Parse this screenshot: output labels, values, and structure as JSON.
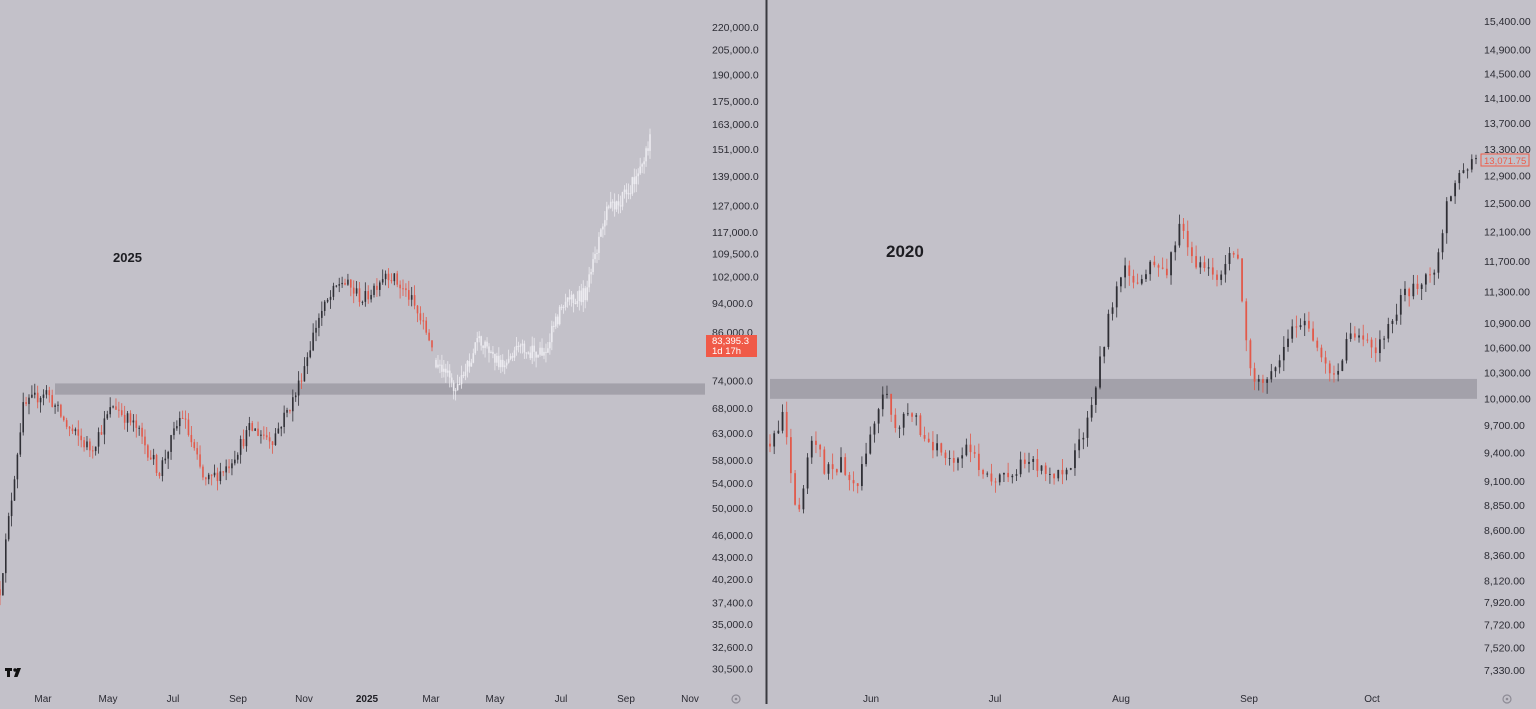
{
  "colors": {
    "background": "#c3c1c9",
    "up": "#2f2f35",
    "down": "#e2594a",
    "projection": "#ecebf0",
    "zone": "#9d9ba5",
    "price_tag": "#f05a48",
    "divider": "#3a3a40"
  },
  "logo": "TV",
  "chart_data": [
    {
      "type": "candlestick",
      "title": "2025",
      "scale": "log",
      "ylim": [
        29500,
        232000
      ],
      "y_ticks": [
        "220,000.0",
        "205,000.0",
        "190,000.0",
        "175,000.0",
        "163,000.0",
        "151,000.0",
        "139,000.0",
        "127,000.0",
        "117,000.0",
        "109,500.0",
        "102,000.0",
        "94,000.0",
        "86,000.0",
        "74,000.0",
        "68,000.0",
        "63,000.0",
        "58,000.0",
        "54,000.0",
        "50,000.0",
        "46,000.0",
        "43,000.0",
        "40,200.0",
        "37,400.0",
        "35,000.0",
        "32,600.0",
        "30,500.0"
      ],
      "x_ticks": [
        "Mar",
        "May",
        "Jul",
        "Sep",
        "Nov",
        "2025",
        "Mar",
        "May",
        "Jul",
        "Sep",
        "Nov"
      ],
      "current_price": "83,395.3",
      "countdown": "1d 17h",
      "zone": [
        71000,
        73500
      ],
      "series": [
        {
          "kind": "historical",
          "points": [
            [
              "Feb 2024",
              39000
            ],
            [
              "early Mar 2024",
              68000
            ],
            [
              "mid Mar 2024",
              72000
            ],
            [
              "Apr 2024",
              64000
            ],
            [
              "May 2024",
              60000
            ],
            [
              "late May 2024",
              69000
            ],
            [
              "Jun 2024",
              64000
            ],
            [
              "Jul 2024",
              56000
            ],
            [
              "late Jul 2024",
              67000
            ],
            [
              "Aug 2024",
              54000
            ],
            [
              "early Sep 2024",
              57000
            ],
            [
              "late Sep 2024",
              64000
            ],
            [
              "Oct 2024",
              62000
            ],
            [
              "late Oct 2024",
              71000
            ],
            [
              "Nov 2024",
              90000
            ],
            [
              "Dec 2024",
              101000
            ],
            [
              "Jan 2025",
              95000
            ],
            [
              "late Jan 2025",
              104000
            ],
            [
              "Feb 2025",
              96000
            ],
            [
              "Mar 2025",
              83000
            ]
          ]
        },
        {
          "kind": "projection",
          "points": [
            [
              "Mar 2025",
              79000
            ],
            [
              "early Apr 2025",
              72000
            ],
            [
              "late Apr 2025",
              84000
            ],
            [
              "May 2025",
              78000
            ],
            [
              "Jun 2025",
              82000
            ],
            [
              "late Jun 2025",
              80000
            ],
            [
              "Jul 2025",
              95000
            ],
            [
              "early Aug 2025",
              97000
            ],
            [
              "Aug 2025",
              125000
            ],
            [
              "Sep 2025",
              132000
            ],
            [
              "late Sep 2025",
              155000
            ]
          ]
        }
      ]
    },
    {
      "type": "candlestick",
      "title": "2020",
      "scale": "log",
      "ylim": [
        7250,
        15600
      ],
      "y_ticks": [
        "15,400.00",
        "14,900.00",
        "14,500.00",
        "14,100.00",
        "13,700.00",
        "13,300.00",
        "12,900.00",
        "12,500.00",
        "12,100.00",
        "11,700.00",
        "11,300.00",
        "10,900.00",
        "10,600.00",
        "10,300.00",
        "10,000.00",
        "9,700.00",
        "9,400.00",
        "9,100.00",
        "8,850.00",
        "8,600.00",
        "8,360.00",
        "8,120.00",
        "7,920.00",
        "7,720.00",
        "7,520.00",
        "7,330.00"
      ],
      "x_ticks": [
        "Jun",
        "Jul",
        "Aug",
        "Sep",
        "Oct"
      ],
      "current_price": "13,071.75",
      "zone": [
        10000,
        10230
      ],
      "series": [
        {
          "kind": "historical",
          "points": [
            [
              "May 10",
              9500
            ],
            [
              "May 11",
              9800
            ],
            [
              "May 13",
              8700
            ],
            [
              "May 16",
              9600
            ],
            [
              "May 20",
              9200
            ],
            [
              "May 23",
              9300
            ],
            [
              "late May",
              9000
            ],
            [
              "Jun 1",
              9500
            ],
            [
              "Jun 2",
              10100
            ],
            [
              "Jun 5",
              9700
            ],
            [
              "Jun 8",
              9800
            ],
            [
              "Jun 10",
              9600
            ],
            [
              "Jun 13",
              9400
            ],
            [
              "Jun 18",
              9300
            ],
            [
              "Jun 22",
              9500
            ],
            [
              "Jun 25",
              9200
            ],
            [
              "Jun 28",
              9100
            ],
            [
              "Jul 1",
              9200
            ],
            [
              "Jul 8",
              9300
            ],
            [
              "Jul 12",
              9250
            ],
            [
              "Jul 16",
              9150
            ],
            [
              "Jul 20",
              9200
            ],
            [
              "Jul 23",
              9500
            ],
            [
              "Jul 27",
              10100
            ],
            [
              "Jul 29",
              11000
            ],
            [
              "Aug 1",
              11600
            ],
            [
              "Aug 4",
              11300
            ],
            [
              "Aug 8",
              11800
            ],
            [
              "Aug 12",
              11500
            ],
            [
              "Aug 17",
              12200
            ],
            [
              "Aug 20",
              11700
            ],
            [
              "Aug 24",
              11600
            ],
            [
              "Aug 28",
              11500
            ],
            [
              "Sep 1",
              11900
            ],
            [
              "Sep 3",
              10300
            ],
            [
              "Sep 6",
              10100
            ],
            [
              "Sep 10",
              10400
            ],
            [
              "Sep 15",
              10800
            ],
            [
              "Sep 19",
              11000
            ],
            [
              "Sep 22",
              10500
            ],
            [
              "Sep 24",
              10300
            ],
            [
              "Sep 27",
              10700
            ],
            [
              "Oct 1",
              10650
            ],
            [
              "Oct 5",
              10600
            ],
            [
              "Oct 8",
              10900
            ],
            [
              "Oct 11",
              11300
            ],
            [
              "Oct 15",
              11400
            ],
            [
              "Oct 19",
              11600
            ],
            [
              "Oct 21",
              12500
            ],
            [
              "Oct 23",
              13000
            ],
            [
              "Oct 27",
              13070
            ]
          ]
        }
      ]
    }
  ]
}
